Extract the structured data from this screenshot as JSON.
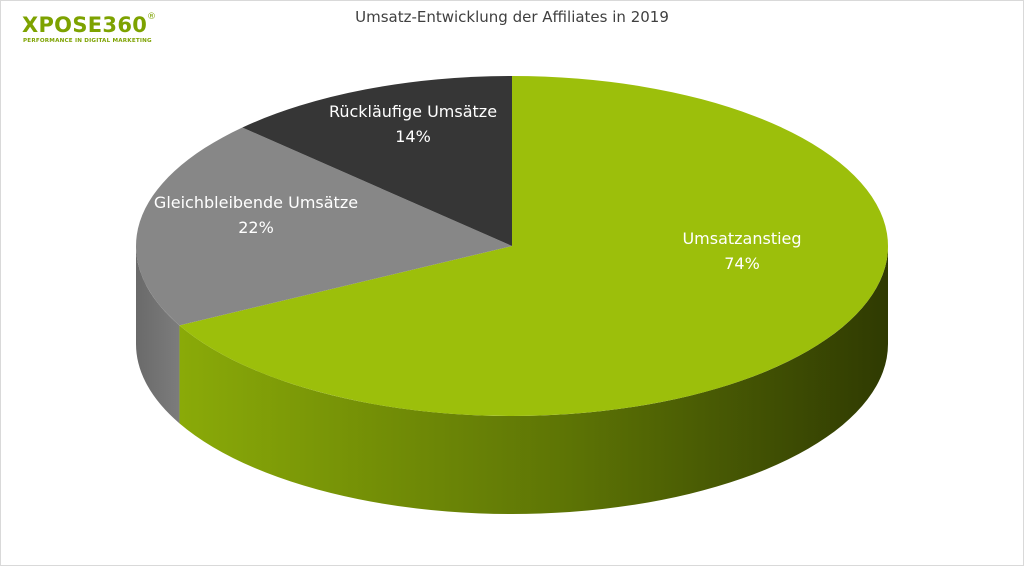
{
  "brand": {
    "logo_text": "XPOSE360",
    "registered_mark": "®",
    "tagline": "PERFORMANCE IN DIGITAL MARKETING"
  },
  "chart_data": {
    "type": "pie",
    "title": "Umsatz-Entwicklung der Affiliates in 2019",
    "three_d": true,
    "slices": [
      {
        "label": "Umsatzanstieg",
        "value": 74,
        "value_label": "74%",
        "color": "#9cbf0b",
        "side_color": "#556a05"
      },
      {
        "label": "Gleichbleibende Umsätze",
        "value": 22,
        "value_label": "22%",
        "color": "#878787",
        "side_color": "#5e5e5e"
      },
      {
        "label": "Rückläufige Umsätze",
        "value": 14,
        "value_label": "14%",
        "color": "#363636",
        "side_color": "#202020"
      }
    ]
  }
}
